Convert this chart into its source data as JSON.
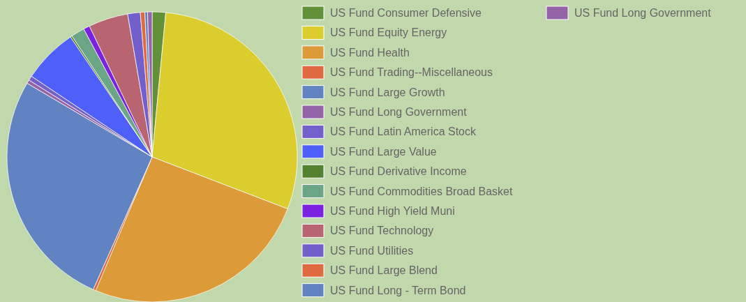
{
  "chart_data": {
    "type": "pie",
    "legend": "right",
    "categories": [
      "US Fund Consumer Defensive",
      "US Fund Equity Energy",
      "US Fund Health",
      "US Fund Trading--Miscellaneous",
      "US Fund Large Growth",
      "US Fund Long Government",
      "US Fund Latin America Stock",
      "US Fund Large Value",
      "US Fund Derivative Income",
      "US Fund Commodities Broad Basket",
      "US Fund High Yield Muni",
      "US Fund Technology",
      "US Fund Utilities",
      "US Fund Large Blend",
      "US Fund Long - Term Bond",
      "US Fund Long Government"
    ],
    "values": [
      1.5,
      29.3,
      25.5,
      0.3,
      26.8,
      0.4,
      0.5,
      6.1,
      0.2,
      1.5,
      0.7,
      4.4,
      1.4,
      0.5,
      0.3,
      0.5
    ],
    "colors": [
      "#62913a",
      "#dccd2e",
      "#dc9b38",
      "#e06a3f",
      "#6183c2",
      "#9563a8",
      "#7360cc",
      "#4f5ff9",
      "#548230",
      "#6aa585",
      "#7a22e0",
      "#b96471",
      "#735fcc",
      "#e06a3f",
      "#6183c2",
      "#9563a8"
    ]
  }
}
